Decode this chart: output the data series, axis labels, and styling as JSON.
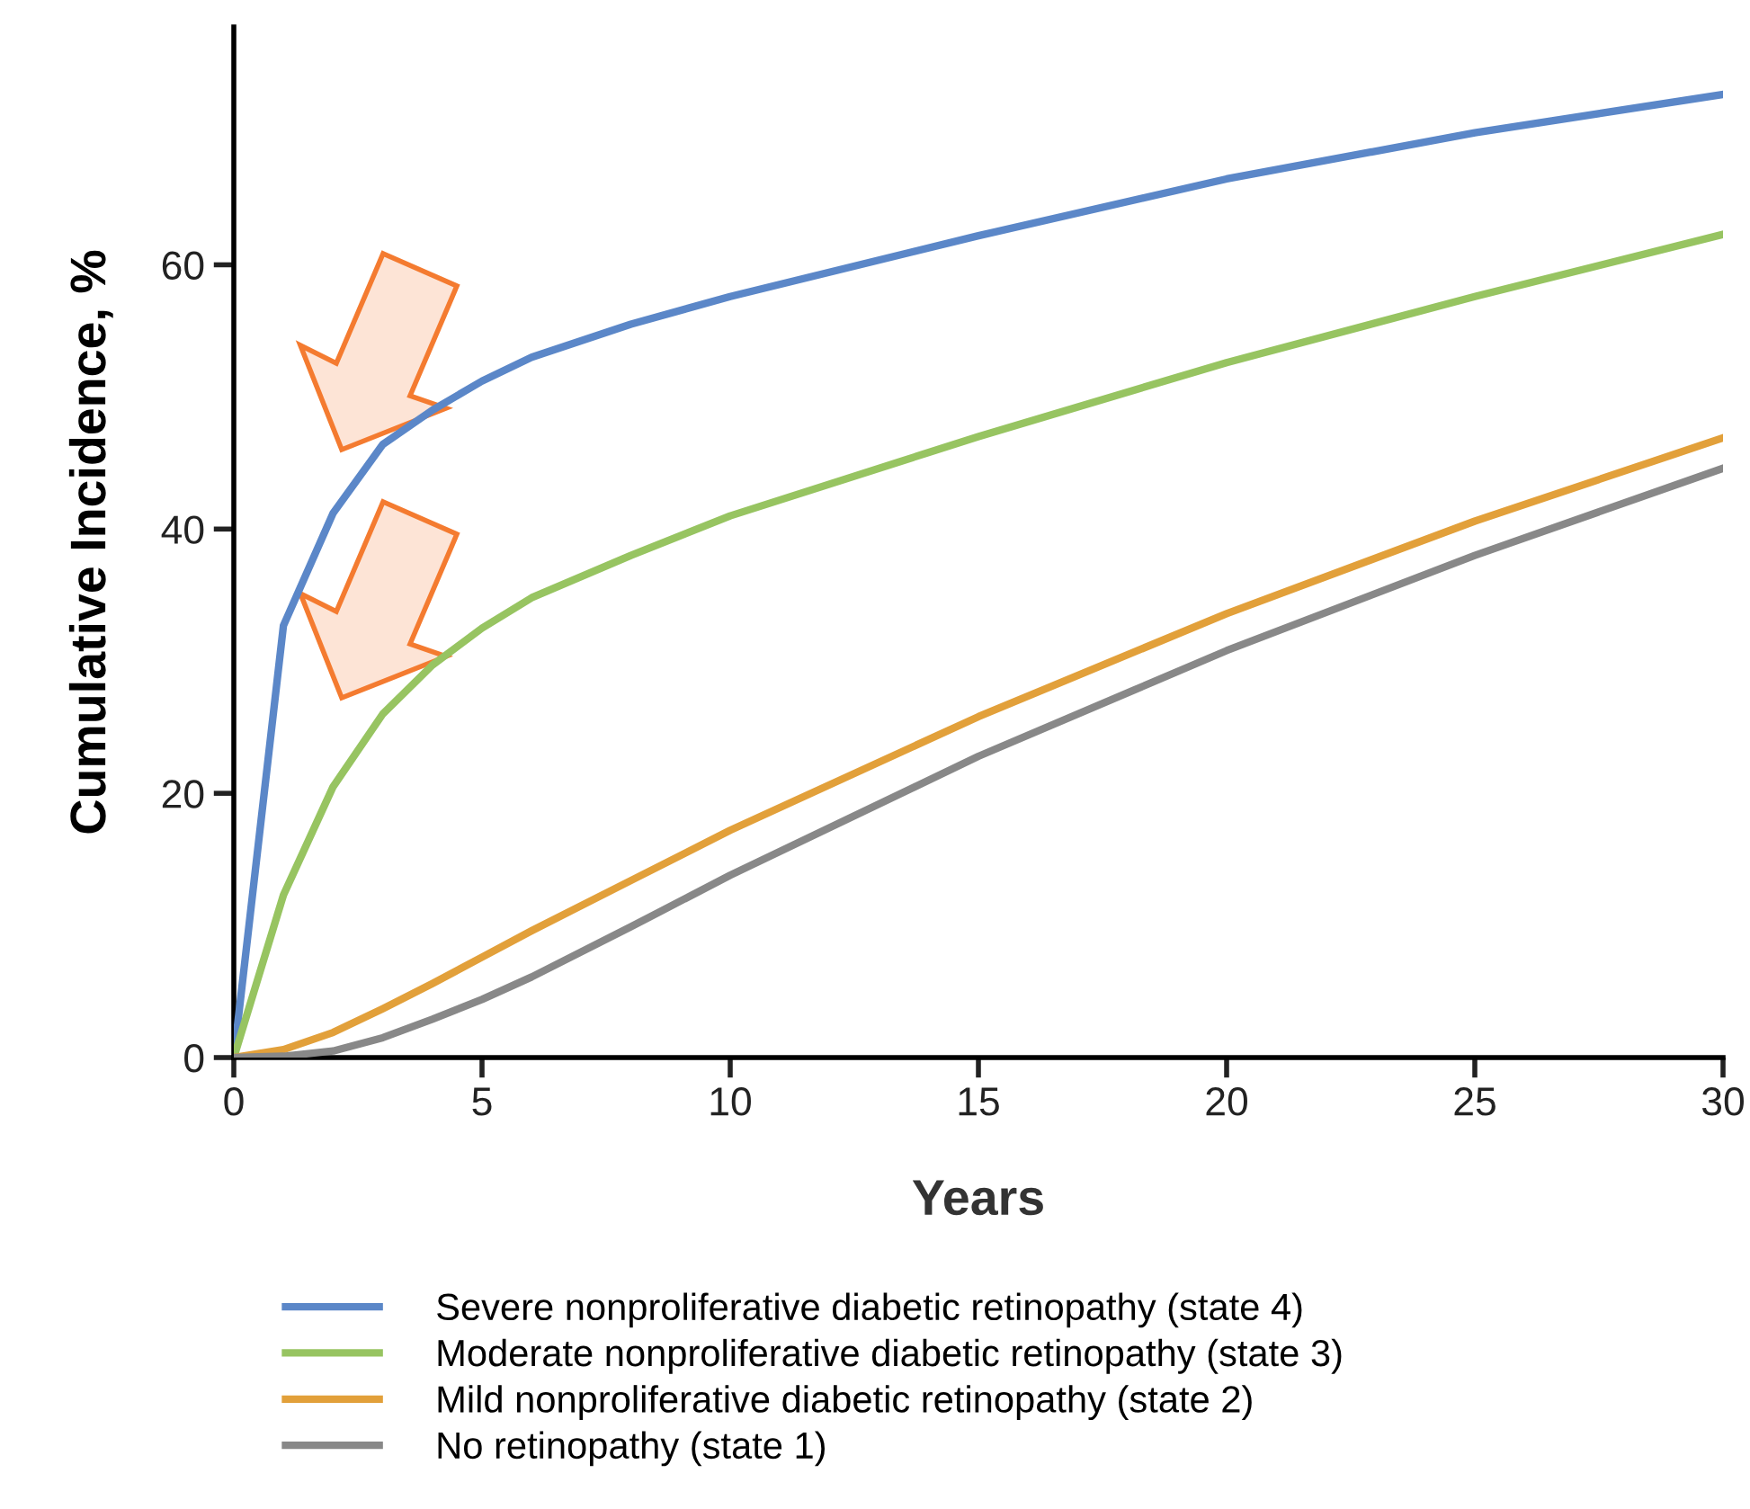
{
  "chart_data": {
    "type": "line",
    "xlabel": "Years",
    "ylabel": "Cumulative Incidence, %",
    "xlim": [
      0,
      30
    ],
    "ylim": [
      0,
      78
    ],
    "xticks": [
      0,
      5,
      10,
      15,
      20,
      25,
      30
    ],
    "yticks": [
      0,
      20,
      40,
      60
    ],
    "grid": false,
    "legend": "bottom",
    "marker": "none",
    "line_style": "solid",
    "x": [
      0,
      1,
      2,
      3,
      4,
      5,
      6,
      8,
      10,
      15,
      20,
      25,
      30
    ],
    "series": [
      {
        "name": "Severe nonproliferative diabetic retinopathy (state 4)",
        "color": "#5b87c8",
        "values": [
          0,
          32.7,
          41.2,
          46.4,
          49,
          51.2,
          53,
          55.5,
          57.6,
          62.2,
          66.5,
          70,
          72.9
        ]
      },
      {
        "name": "Moderate nonproliferative diabetic retinopathy (state 3)",
        "color": "#97c461",
        "values": [
          0,
          12.3,
          20.5,
          26,
          29.7,
          32.5,
          34.8,
          38,
          41,
          47,
          52.6,
          57.6,
          62.3
        ]
      },
      {
        "name": "Mild nonproliferative diabetic retinopathy (state 2)",
        "color": "#e2a03a",
        "values": [
          0,
          0.6,
          1.9,
          3.7,
          5.6,
          7.6,
          9.6,
          13.4,
          17.2,
          25.8,
          33.6,
          40.6,
          46.9
        ]
      },
      {
        "name": "No retinopathy (state 1)",
        "color": "#888888",
        "values": [
          0,
          0.1,
          0.5,
          1.5,
          2.9,
          4.4,
          6.1,
          9.9,
          13.8,
          22.8,
          30.8,
          38,
          44.6
        ]
      }
    ]
  }
}
